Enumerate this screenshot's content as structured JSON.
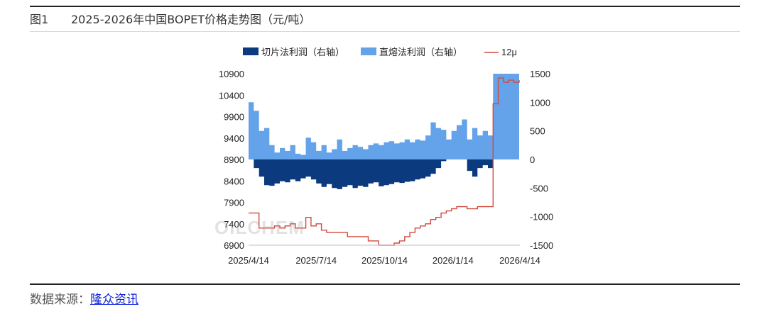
{
  "caption": {
    "number": "图1",
    "title": "2025-2026年中国BOPET价格走势图（元/吨）"
  },
  "source": {
    "label": "数据来源：",
    "link_text": "隆众资讯"
  },
  "watermark_text": "OILCHEM",
  "colors": {
    "cut_profit": "#0b3a7e",
    "melt_profit": "#64a2ea",
    "price_line": "#d24a3c"
  },
  "chart_data": {
    "type": "line",
    "x_tick_labels": [
      "2025/4/14",
      "2025/7/14",
      "2025/10/14",
      "2026/1/14",
      "2026/4/14"
    ],
    "x_range": [
      "2025/4/14",
      "2026/4/14"
    ],
    "ylim_left": [
      6900,
      10900
    ],
    "yticks_left": [
      10900,
      10400,
      9900,
      9400,
      8900,
      8400,
      7900,
      7400,
      6900
    ],
    "ylim_right": [
      -1500,
      1500
    ],
    "yticks_right": [
      1500,
      1000,
      500,
      0,
      -500,
      -1000,
      -1500
    ],
    "legend_position": "top",
    "grid": false,
    "series": [
      {
        "name": "切片法利润（右轴）",
        "axis": "right",
        "kind": "area",
        "x": [
          "2025/4/14",
          "2025/4/21",
          "2025/4/28",
          "2025/5/5",
          "2025/5/12",
          "2025/5/19",
          "2025/5/26",
          "2025/6/2",
          "2025/6/9",
          "2025/6/16",
          "2025/6/23",
          "2025/6/30",
          "2025/7/7",
          "2025/7/14",
          "2025/7/21",
          "2025/7/28",
          "2025/8/4",
          "2025/8/11",
          "2025/8/18",
          "2025/8/25",
          "2025/9/1",
          "2025/9/8",
          "2025/9/15",
          "2025/9/22",
          "2025/9/29",
          "2025/10/6",
          "2025/10/13",
          "2025/10/20",
          "2025/10/27",
          "2025/11/3",
          "2025/11/10",
          "2025/11/17",
          "2025/11/24",
          "2025/12/1",
          "2025/12/8",
          "2025/12/15",
          "2025/12/22",
          "2025/12/29",
          "2026/1/5",
          "2026/1/12",
          "2026/1/19",
          "2026/1/26",
          "2026/2/2",
          "2026/2/9",
          "2026/2/16",
          "2026/2/23",
          "2026/3/2",
          "2026/3/9"
        ],
        "values": [
          0,
          -150,
          -300,
          -450,
          -460,
          -420,
          -380,
          -400,
          -350,
          -380,
          -330,
          -300,
          -350,
          -420,
          -480,
          -430,
          -500,
          -520,
          -480,
          -450,
          -500,
          -460,
          -480,
          -420,
          -400,
          -470,
          -450,
          -430,
          -400,
          -410,
          -390,
          -380,
          -350,
          -330,
          -300,
          -250,
          -150,
          -30,
          0,
          0,
          0,
          0,
          -200,
          -300,
          -150,
          -100,
          -150,
          0
        ]
      },
      {
        "name": "直熔法利润（右轴）",
        "axis": "right",
        "kind": "area",
        "x": [
          "2025/4/14",
          "2025/4/21",
          "2025/4/28",
          "2025/5/5",
          "2025/5/12",
          "2025/5/19",
          "2025/5/26",
          "2025/6/2",
          "2025/6/9",
          "2025/6/16",
          "2025/6/23",
          "2025/6/30",
          "2025/7/7",
          "2025/7/14",
          "2025/7/21",
          "2025/7/28",
          "2025/8/4",
          "2025/8/11",
          "2025/8/18",
          "2025/8/25",
          "2025/9/1",
          "2025/9/8",
          "2025/9/15",
          "2025/9/22",
          "2025/9/29",
          "2025/10/6",
          "2025/10/13",
          "2025/10/20",
          "2025/10/27",
          "2025/11/3",
          "2025/11/10",
          "2025/11/17",
          "2025/11/24",
          "2025/12/1",
          "2025/12/8",
          "2025/12/15",
          "2025/12/22",
          "2025/12/29",
          "2026/1/5",
          "2026/1/12",
          "2026/1/19",
          "2026/1/26",
          "2026/2/2",
          "2026/2/9",
          "2026/2/16",
          "2026/2/23",
          "2026/3/2",
          "2026/3/9",
          "2026/3/16",
          "2026/3/23",
          "2026/3/30",
          "2026/4/6",
          "2026/4/13"
        ],
        "values": [
          1000,
          850,
          500,
          550,
          250,
          120,
          200,
          150,
          250,
          100,
          80,
          380,
          300,
          150,
          250,
          120,
          180,
          350,
          150,
          200,
          250,
          220,
          180,
          250,
          280,
          250,
          300,
          320,
          280,
          300,
          350,
          300,
          350,
          330,
          420,
          650,
          550,
          520,
          350,
          500,
          600,
          700,
          350,
          550,
          420,
          500,
          420,
          1500,
          1500,
          1500,
          1500,
          1500,
          1500
        ]
      },
      {
        "name": "12μ",
        "axis": "left",
        "kind": "line",
        "x": [
          "2025/4/14",
          "2025/4/21",
          "2025/4/28",
          "2025/5/5",
          "2025/5/12",
          "2025/5/19",
          "2025/5/26",
          "2025/6/2",
          "2025/6/9",
          "2025/6/16",
          "2025/6/23",
          "2025/6/30",
          "2025/7/7",
          "2025/7/14",
          "2025/7/21",
          "2025/7/28",
          "2025/8/4",
          "2025/8/11",
          "2025/8/18",
          "2025/8/25",
          "2025/9/1",
          "2025/9/8",
          "2025/9/15",
          "2025/9/22",
          "2025/9/29",
          "2025/10/6",
          "2025/10/13",
          "2025/10/20",
          "2025/10/27",
          "2025/11/3",
          "2025/11/10",
          "2025/11/17",
          "2025/11/24",
          "2025/12/1",
          "2025/12/8",
          "2025/12/15",
          "2025/12/22",
          "2025/12/29",
          "2026/1/5",
          "2026/1/12",
          "2026/1/19",
          "2026/1/26",
          "2026/2/2",
          "2026/2/9",
          "2026/2/16",
          "2026/2/23",
          "2026/3/2",
          "2026/3/9",
          "2026/3/16",
          "2026/3/23",
          "2026/3/30",
          "2026/4/6",
          "2026/4/13"
        ],
        "values": [
          7650,
          7650,
          7300,
          7300,
          7300,
          7350,
          7300,
          7350,
          7400,
          7300,
          7300,
          7550,
          7350,
          7400,
          7250,
          7200,
          7200,
          7200,
          7200,
          7100,
          7100,
          7100,
          7100,
          7000,
          7000,
          6900,
          6900,
          6900,
          6950,
          7000,
          7100,
          7200,
          7300,
          7350,
          7400,
          7500,
          7550,
          7650,
          7700,
          7750,
          7800,
          7800,
          7750,
          7750,
          7800,
          7800,
          7800,
          10200,
          10800,
          10700,
          10750,
          10700,
          10750
        ]
      }
    ]
  }
}
